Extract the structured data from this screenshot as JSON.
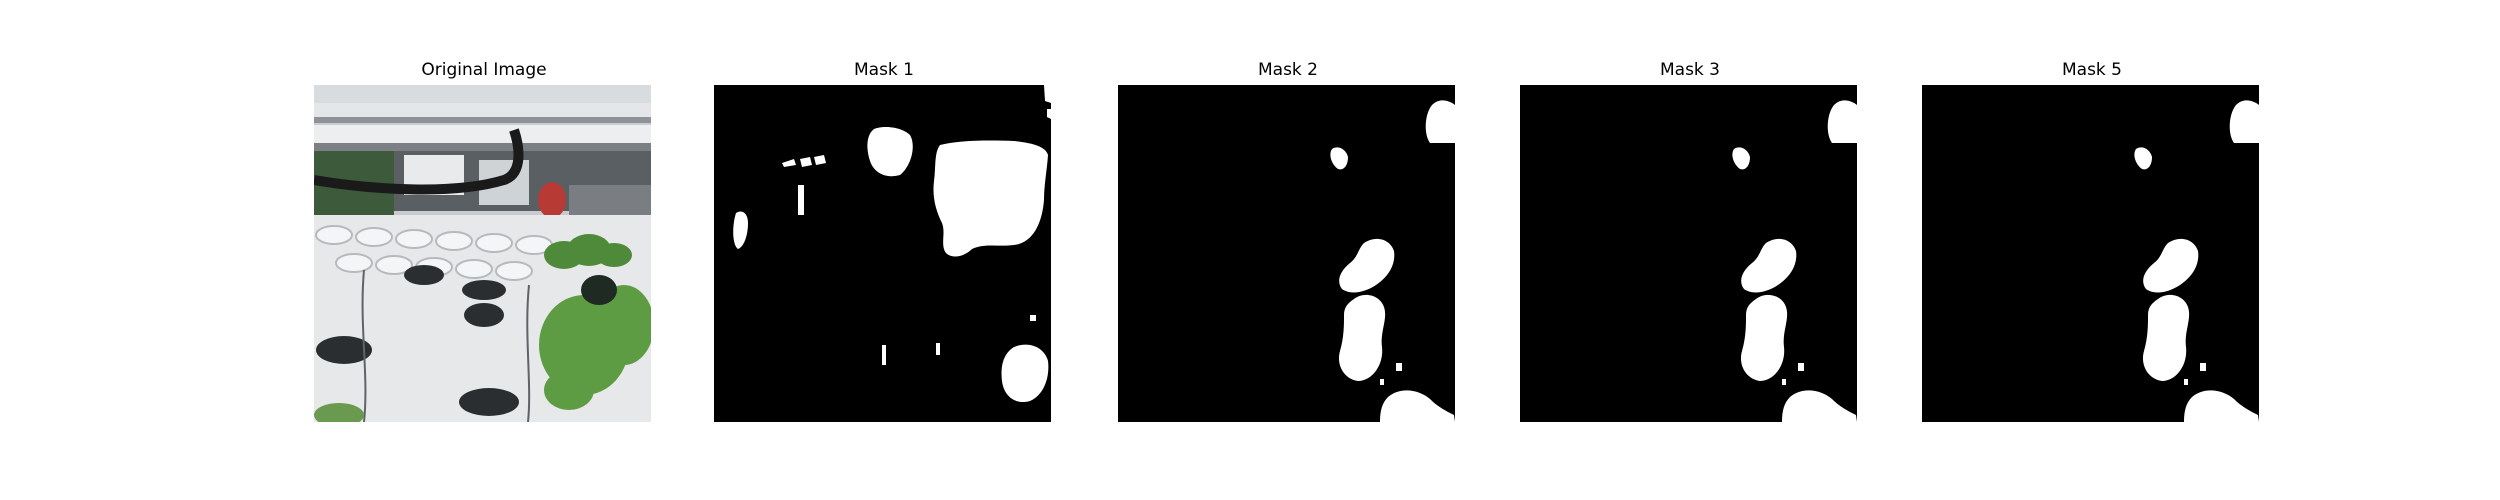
{
  "panels": [
    {
      "title": "Original Image",
      "kind": "photo"
    },
    {
      "title": "Mask 1",
      "kind": "mask"
    },
    {
      "title": "Mask 2",
      "kind": "mask"
    },
    {
      "title": "Mask 3",
      "kind": "mask"
    },
    {
      "title": "Mask 5",
      "kind": "mask"
    }
  ],
  "colors": {
    "background": "#ffffff",
    "mask_background": "#000000",
    "mask_foreground": "#ffffff",
    "title_text": "#000000"
  }
}
